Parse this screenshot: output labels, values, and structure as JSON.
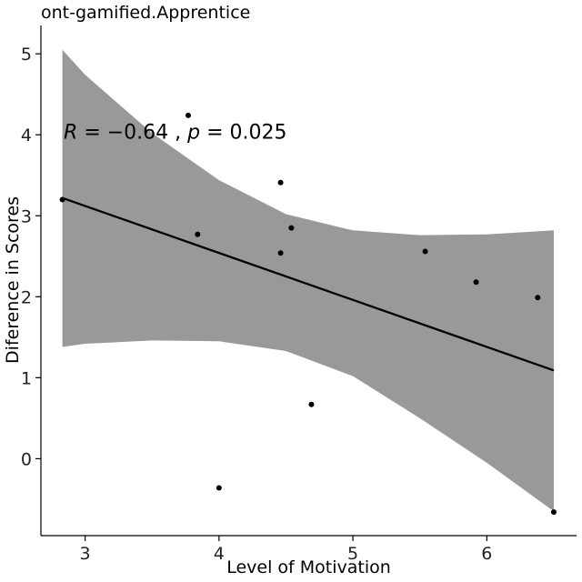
{
  "chart_data": {
    "type": "scatter",
    "title": "ont-gamified.Apprentice",
    "xlabel": "Level of Motivation",
    "ylabel": "Diference in Scores",
    "xlim": [
      2.67,
      6.67
    ],
    "ylim": [
      -0.95,
      5.35
    ],
    "xticks": [
      3,
      4,
      5,
      6
    ],
    "yticks": [
      0,
      1,
      2,
      3,
      4,
      5
    ],
    "grid": false,
    "legend": "none",
    "points": [
      {
        "x": 2.83,
        "y": 3.2
      },
      {
        "x": 3.77,
        "y": 4.24
      },
      {
        "x": 3.84,
        "y": 2.77
      },
      {
        "x": 4.0,
        "y": -0.36
      },
      {
        "x": 4.46,
        "y": 3.41
      },
      {
        "x": 4.46,
        "y": 2.54
      },
      {
        "x": 4.54,
        "y": 2.85
      },
      {
        "x": 4.69,
        "y": 0.67
      },
      {
        "x": 5.54,
        "y": 2.56
      },
      {
        "x": 5.92,
        "y": 2.18
      },
      {
        "x": 6.38,
        "y": 1.99
      },
      {
        "x": 6.5,
        "y": -0.66
      }
    ],
    "regression_line": {
      "x": [
        2.83,
        6.5
      ],
      "y": [
        3.22,
        1.09
      ]
    },
    "confidence_band": {
      "x": [
        2.83,
        3.0,
        3.5,
        4.0,
        4.5,
        5.0,
        5.5,
        6.0,
        6.5
      ],
      "upper": [
        5.05,
        4.74,
        4.02,
        3.44,
        3.02,
        2.82,
        2.76,
        2.77,
        2.82
      ],
      "lower": [
        1.38,
        1.42,
        1.46,
        1.45,
        1.33,
        1.02,
        0.5,
        -0.05,
        -0.65
      ]
    },
    "annotation": {
      "R_label": "R",
      "R_value": " = −0.64 , ",
      "p_label": "p",
      "p_value": " = 0.025",
      "anchor": {
        "x": 2.84,
        "y": 3.95
      }
    },
    "colors": {
      "band": "#999999",
      "line": "#000000",
      "points": "#000000",
      "axes": "#000000"
    }
  }
}
